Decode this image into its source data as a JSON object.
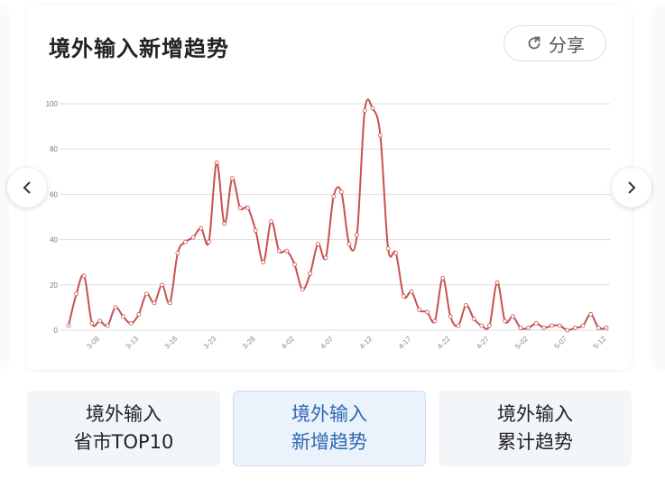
{
  "title": "境外输入新增趋势",
  "share_label": "分享",
  "icons": {
    "share": "share-refresh-icon",
    "prev": "chevron-left-icon",
    "next": "chevron-right-icon"
  },
  "colors": {
    "line": "#c9504f",
    "active_tab_text": "#2f67b3",
    "active_tab_bg": "#eaf2fb"
  },
  "tabs": [
    {
      "line1": "境外输入",
      "line2": "省市TOP10",
      "active": false
    },
    {
      "line1": "境外输入",
      "line2": "新增趋势",
      "active": true
    },
    {
      "line1": "境外输入",
      "line2": "累计趋势",
      "active": false
    }
  ],
  "chart_data": {
    "type": "line",
    "title": "",
    "xlabel": "",
    "ylabel": "",
    "ylim": [
      0,
      100
    ],
    "yticks": [
      "0",
      "20",
      "40",
      "60",
      "80",
      "100"
    ],
    "grid": true,
    "smooth": true,
    "xtick_labels": [
      "3-08",
      "3-13",
      "3-18",
      "3-23",
      "3-28",
      "4-02",
      "4-07",
      "4-12",
      "4-17",
      "4-22",
      "4-27",
      "5-02",
      "5-07",
      "5-12"
    ],
    "x": [
      "3-04",
      "3-05",
      "3-06",
      "3-07",
      "3-08",
      "3-09",
      "3-10",
      "3-11",
      "3-12",
      "3-13",
      "3-14",
      "3-15",
      "3-16",
      "3-17",
      "3-18",
      "3-19",
      "3-20",
      "3-21",
      "3-22",
      "3-23",
      "3-24",
      "3-25",
      "3-26",
      "3-27",
      "3-28",
      "3-29",
      "3-30",
      "3-31",
      "4-01",
      "4-02",
      "4-03",
      "4-04",
      "4-05",
      "4-06",
      "4-07",
      "4-08",
      "4-09",
      "4-10",
      "4-11",
      "4-12",
      "4-13",
      "4-14",
      "4-15",
      "4-16",
      "4-17",
      "4-18",
      "4-19",
      "4-20",
      "4-21",
      "4-22",
      "4-23",
      "4-24",
      "4-25",
      "4-26",
      "4-27",
      "4-28",
      "4-29",
      "4-30",
      "5-01",
      "5-02",
      "5-03",
      "5-04",
      "5-05",
      "5-06",
      "5-07",
      "5-08",
      "5-09",
      "5-10",
      "5-11",
      "5-12"
    ],
    "values": [
      2,
      16,
      24,
      3,
      4,
      2,
      10,
      6,
      3,
      7,
      16,
      12,
      20,
      12,
      34,
      39,
      41,
      45,
      39,
      74,
      47,
      67,
      54,
      54,
      44,
      30,
      48,
      35,
      35,
      29,
      18,
      25,
      38,
      32,
      59,
      61,
      38,
      42,
      97,
      98,
      86,
      36,
      34,
      15,
      17,
      9,
      8,
      4,
      23,
      6,
      2,
      11,
      5,
      2,
      2,
      21,
      4,
      6,
      1,
      1,
      3,
      1,
      2,
      2,
      0,
      1,
      2,
      7,
      1,
      1
    ]
  }
}
